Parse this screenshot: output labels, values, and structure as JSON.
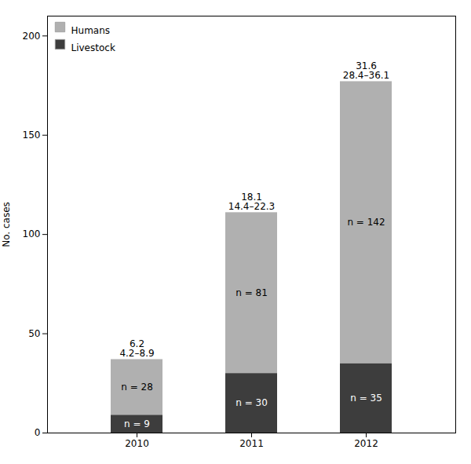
{
  "chart_data": {
    "type": "bar",
    "stacked": true,
    "categories": [
      "2010",
      "2011",
      "2012"
    ],
    "series": [
      {
        "name": "Livestock",
        "color": "#3d3d3d",
        "values": [
          9,
          30,
          35
        ],
        "value_labels": [
          "n = 9",
          "n = 30",
          "n = 35"
        ]
      },
      {
        "name": "Humans",
        "color": "#b0b0b0",
        "values": [
          28,
          81,
          142
        ],
        "value_labels": [
          "n = 28",
          "n = 81",
          "n = 142"
        ]
      }
    ],
    "data_labels": true,
    "annotations": [
      {
        "category": "2010",
        "lines": [
          "6.2",
          "4.2–8.9"
        ]
      },
      {
        "category": "2011",
        "lines": [
          "18.1",
          "14.4–22.3"
        ]
      },
      {
        "category": "2012",
        "lines": [
          "31.6",
          "28.4–36.1"
        ]
      }
    ],
    "ylabel": "No. cases",
    "ylim": [
      0,
      210
    ],
    "yticks": [
      0,
      50,
      100,
      150,
      200
    ],
    "grid": false,
    "legend": "upper left"
  }
}
